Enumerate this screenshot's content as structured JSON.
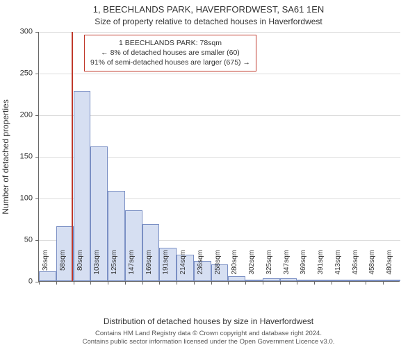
{
  "title_main": "1, BEECHLANDS PARK, HAVERFORDWEST, SA61 1EN",
  "title_sub": "Size of property relative to detached houses in Haverfordwest",
  "y_axis": {
    "label": "Number of detached properties",
    "ticks": [
      0,
      50,
      100,
      150,
      200,
      250,
      300
    ],
    "max": 300
  },
  "x_axis": {
    "label": "Distribution of detached houses by size in Haverfordwest",
    "tick_labels": [
      "36sqm",
      "58sqm",
      "80sqm",
      "103sqm",
      "125sqm",
      "147sqm",
      "169sqm",
      "191sqm",
      "214sqm",
      "236sqm",
      "258sqm",
      "280sqm",
      "302sqm",
      "325sqm",
      "347sqm",
      "369sqm",
      "391sqm",
      "413sqm",
      "436sqm",
      "458sqm",
      "480sqm"
    ]
  },
  "chart": {
    "type": "histogram",
    "bar_fill": "#d6dff2",
    "bar_stroke": "#7a8fc4",
    "grid_color": "#dddddd",
    "background": "#ffffff",
    "values": [
      12,
      66,
      228,
      162,
      108,
      85,
      68,
      40,
      32,
      24,
      20,
      6,
      2,
      3,
      3,
      2,
      2,
      1,
      0,
      1,
      2
    ]
  },
  "marker": {
    "color": "#c0392b",
    "position_sqm": 78,
    "box_lines": {
      "l1": "1 BEECHLANDS PARK: 78sqm",
      "l2": "← 8% of detached houses are smaller (60)",
      "l3": "91% of semi-detached houses are larger (675) →"
    }
  },
  "footer": {
    "l1": "Contains HM Land Registry data © Crown copyright and database right 2024.",
    "l2": "Contains public sector information licensed under the Open Government Licence v3.0."
  }
}
